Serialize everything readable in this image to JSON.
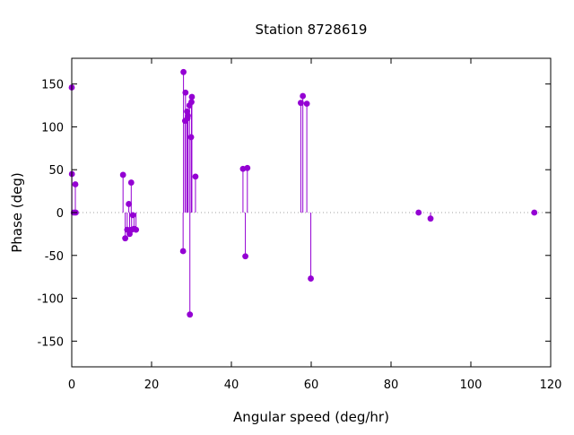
{
  "chart_data": {
    "type": "scatter",
    "style": "impulses-with-points",
    "title": "Station 8728619",
    "xlabel": "Angular speed (deg/hr)",
    "ylabel": "Phase (deg)",
    "xlim": [
      0,
      120
    ],
    "ylim": [
      -180,
      180
    ],
    "xticks": [
      0,
      20,
      40,
      60,
      80,
      100,
      120
    ],
    "yticks": [
      -150,
      -100,
      -50,
      0,
      50,
      100,
      150
    ],
    "grid": false,
    "zero_line": true,
    "legend": "none",
    "color": "#9400d3",
    "series": [
      {
        "x": [
          0.0,
          0.04,
          0.5,
          0.9,
          1.0,
          12.85,
          13.4,
          13.9,
          14.3,
          14.5,
          14.9,
          15.0,
          15.3,
          15.6,
          16.1,
          27.9,
          28.0,
          28.4,
          28.5,
          28.9,
          29.0,
          29.1,
          29.5,
          29.6,
          29.9,
          30.0,
          30.1,
          31.0,
          42.9,
          43.5,
          44.0,
          57.4,
          57.9,
          58.9,
          59.9,
          86.9,
          89.9,
          115.9
        ],
        "y": [
          146,
          45,
          0,
          33,
          0,
          44,
          -30,
          -20,
          10,
          -25,
          35,
          -20,
          -3,
          -19,
          -20,
          -45,
          164,
          107,
          140,
          118,
          110,
          113,
          125,
          -119,
          88,
          129,
          135,
          42,
          51,
          -51,
          52,
          128,
          136,
          127,
          -77,
          0,
          -7,
          0
        ]
      }
    ]
  }
}
